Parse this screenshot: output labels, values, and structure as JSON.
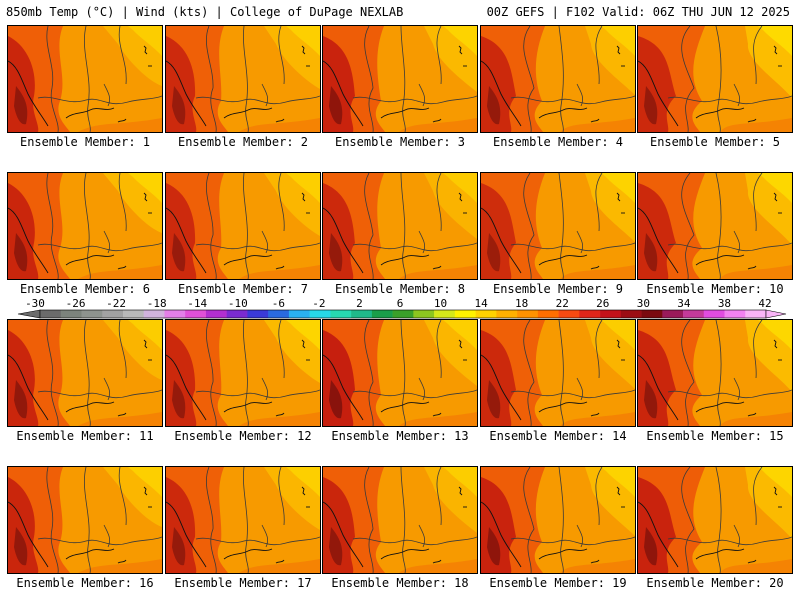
{
  "header": {
    "left_text": "850mb Temp (°C) | Wind (kts) | College of DuPage NEXLAB",
    "right_text": "00Z GEFS | F102 Valid: 06Z THU JUN 12 2025"
  },
  "map": {
    "field_icon": "temperature-field-map",
    "background_color": "#f79a00",
    "contour_color": "#3a3a3a"
  },
  "members": [
    {
      "label": "Ensemble Member: 1",
      "west_heat": 0.75,
      "east_cool": 0.35
    },
    {
      "label": "Ensemble Member: 2",
      "west_heat": 0.65,
      "east_cool": 0.4
    },
    {
      "label": "Ensemble Member: 3",
      "west_heat": 0.8,
      "east_cool": 0.45
    },
    {
      "label": "Ensemble Member: 4",
      "west_heat": 0.7,
      "east_cool": 0.4
    },
    {
      "label": "Ensemble Member: 5",
      "west_heat": 0.7,
      "east_cool": 0.6
    },
    {
      "label": "Ensemble Member: 6",
      "west_heat": 0.75,
      "east_cool": 0.45
    },
    {
      "label": "Ensemble Member: 7",
      "west_heat": 0.65,
      "east_cool": 0.4
    },
    {
      "label": "Ensemble Member: 8",
      "west_heat": 0.7,
      "east_cool": 0.3
    },
    {
      "label": "Ensemble Member: 9",
      "west_heat": 0.6,
      "east_cool": 0.45
    },
    {
      "label": "Ensemble Member: 10",
      "west_heat": 0.7,
      "east_cool": 0.55
    },
    {
      "label": "Ensemble Member: 11",
      "west_heat": 0.75,
      "east_cool": 0.35
    },
    {
      "label": "Ensemble Member: 12",
      "west_heat": 0.7,
      "east_cool": 0.5
    },
    {
      "label": "Ensemble Member: 13",
      "west_heat": 0.9,
      "east_cool": 0.4
    },
    {
      "label": "Ensemble Member: 14",
      "west_heat": 0.7,
      "east_cool": 0.35
    },
    {
      "label": "Ensemble Member: 15",
      "west_heat": 0.75,
      "east_cool": 0.55
    },
    {
      "label": "Ensemble Member: 16",
      "west_heat": 0.75,
      "east_cool": 0.4
    },
    {
      "label": "Ensemble Member: 17",
      "west_heat": 0.7,
      "east_cool": 0.4
    },
    {
      "label": "Ensemble Member: 18",
      "west_heat": 0.75,
      "east_cool": 0.35
    },
    {
      "label": "Ensemble Member: 19",
      "west_heat": 0.8,
      "east_cool": 0.45
    },
    {
      "label": "Ensemble Member: 20",
      "west_heat": 0.8,
      "east_cool": 0.5
    }
  ],
  "colorbar": {
    "tick_labels": [
      "-30",
      "-26",
      "-22",
      "-18",
      "-14",
      "-10",
      "-6",
      "-2",
      "2",
      "6",
      "10",
      "14",
      "18",
      "22",
      "26",
      "30",
      "34",
      "38",
      "42"
    ],
    "colors": [
      "#6b6b6b",
      "#7c837c",
      "#8e938e",
      "#a2a2a2",
      "#b9b9b9",
      "#d1b3dd",
      "#e37fe8",
      "#e050d8",
      "#b22fd0",
      "#7a2bd0",
      "#3a3ad8",
      "#2a6ae0",
      "#2ab0f0",
      "#27d8e8",
      "#27d8b0",
      "#1fb98a",
      "#1a9e4a",
      "#3aa02a",
      "#8cc61f",
      "#d5e81a",
      "#fff200",
      "#ffd200",
      "#ffb000",
      "#ff9200",
      "#ff6e00",
      "#f74a12",
      "#e0251a",
      "#c4111a",
      "#9c0d14",
      "#7a0a0f",
      "#9a1a5a",
      "#c43a9a",
      "#e14ce0",
      "#f282f0",
      "#f9b4f6"
    ]
  }
}
